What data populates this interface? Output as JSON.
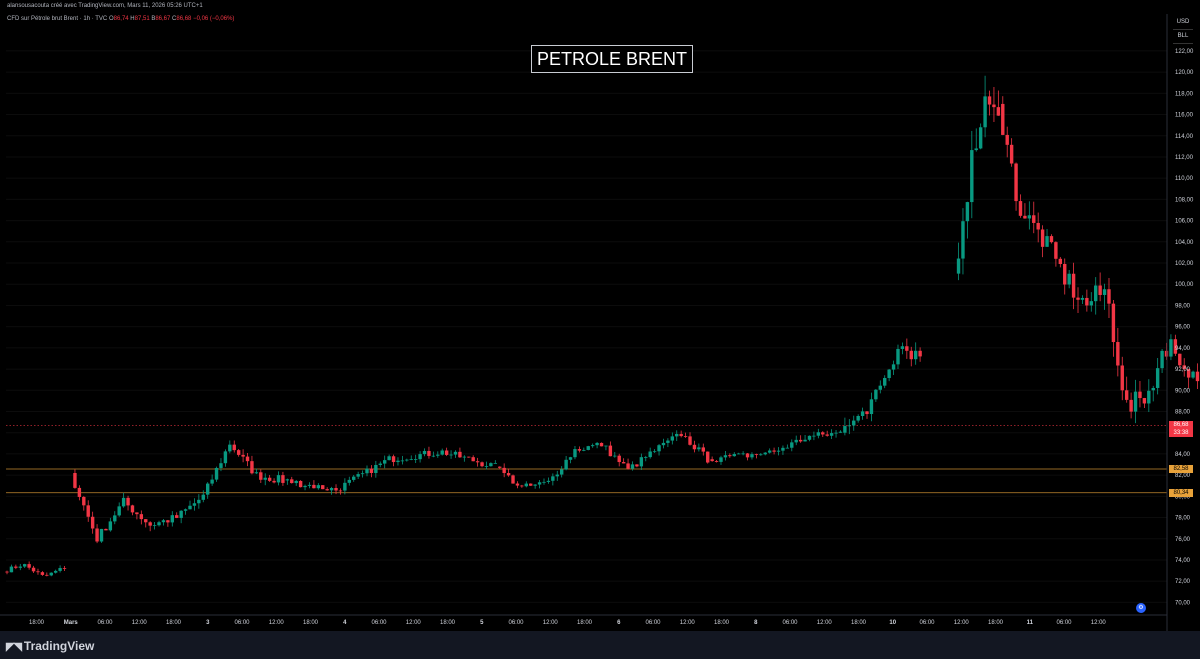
{
  "header": {
    "credit": "alansousacouta créé avec TradingView.com, Mars 11, 2026 05:26 UTC+1"
  },
  "legend": {
    "symbol": "CFD sur Pétrole brut Brent · 1h · TVC",
    "open_label": "O",
    "open": "86,74",
    "high_label": "H",
    "high": "87,51",
    "low_label": "B",
    "low": "86,67",
    "close_label": "C",
    "close": "86,68",
    "change": "−0,06 (−0,06%)"
  },
  "title": "PETROLE BRENT",
  "price_scale": {
    "unit": "USD",
    "mode": "BLL"
  },
  "last_price": {
    "value": "86,68",
    "countdown": "33:38"
  },
  "branding": {
    "name": "TradingView"
  },
  "colors": {
    "up": "#089981",
    "down": "#f23645",
    "level": "#e8a23a",
    "background": "#000000"
  },
  "chart_data": {
    "type": "candlestick",
    "timeframe": "1h",
    "ylim": [
      69,
      123.5
    ],
    "y_ticks": [
      70,
      72,
      74,
      76,
      78,
      80,
      82,
      84,
      86,
      88,
      90,
      92,
      94,
      96,
      98,
      100,
      102,
      104,
      106,
      108,
      110,
      112,
      114,
      116,
      118,
      120,
      122
    ],
    "y_tick_labels": [
      "70,00",
      "72,00",
      "74,00",
      "76,00",
      "78,00",
      "80,00",
      "82,00",
      "84,00",
      "86,00",
      "88,00",
      "90,00",
      "92,00",
      "94,00",
      "96,00",
      "98,00",
      "100,00",
      "102,00",
      "104,00",
      "106,00",
      "108,00",
      "110,00",
      "112,00",
      "114,00",
      "116,00",
      "118,00",
      "120,00",
      "122,00"
    ],
    "x_ticks": [
      "18:00",
      "Mars",
      "06:00",
      "12:00",
      "18:00",
      "3",
      "06:00",
      "12:00",
      "18:00",
      "4",
      "06:00",
      "12:00",
      "18:00",
      "5",
      "06:00",
      "12:00",
      "18:00",
      "6",
      "06:00",
      "12:00",
      "18:00",
      "8",
      "06:00",
      "12:00",
      "18:00",
      "10",
      "06:00",
      "12:00",
      "18:00",
      "11",
      "06:00",
      "12:00"
    ],
    "horizontal_levels": [
      {
        "value": 82.58,
        "label": "82,58"
      },
      {
        "value": 80.34,
        "label": "80,34"
      }
    ],
    "last_price_line": 86.68,
    "segments": [
      {
        "start_label": "28 févr. 15:00",
        "candles": 14,
        "path": [
          72.9,
          73.6,
          72.4,
          73.3
        ],
        "vol": 0.3
      },
      {
        "start_label": "Mars 00:00",
        "candles": 48,
        "path": [
          82.2,
          76.0,
          79.5,
          77.3,
          78.0,
          80.0,
          85.0,
          82.0,
          81.5
        ],
        "vol": 0.6
      },
      {
        "start_label": "3 00:00",
        "candles": 48,
        "path": [
          81.5,
          80.6,
          83.5,
          84.2,
          82.8
        ],
        "vol": 0.5
      },
      {
        "start_label": "4 00:00",
        "candles": 48,
        "path": [
          82.8,
          80.8,
          81.3,
          84.4,
          84.9,
          82.5,
          84.3,
          85.9,
          83.5
        ],
        "vol": 0.5
      },
      {
        "start_label": "5 00:00",
        "candles": 30,
        "path": [
          83.5,
          83.8,
          84.2,
          85.6,
          86.0
        ],
        "vol": 0.5
      },
      {
        "start_label": "5 14:00",
        "candles": 18,
        "path": [
          86.0,
          87.5,
          90.0,
          94.2,
          93.0
        ],
        "vol": 0.9
      },
      {
        "start_label": "8 23:00",
        "candles": 10,
        "path": [
          101.0,
          108.0,
          114.0,
          118.0,
          117.0
        ],
        "vol": 2.2
      },
      {
        "start_label": "9 09:00",
        "candles": 34,
        "path": [
          117.0,
          107.0,
          104.5,
          101.0,
          98.0,
          99.5,
          88.0,
          90.0
        ],
        "vol": 1.6
      },
      {
        "start_label": "10 00:00",
        "candles": 36,
        "path": [
          90.0,
          94.5,
          90.5,
          93.0,
          89.5,
          84.0,
          91.5,
          89.0,
          86.7
        ],
        "vol": 1.2
      }
    ]
  }
}
